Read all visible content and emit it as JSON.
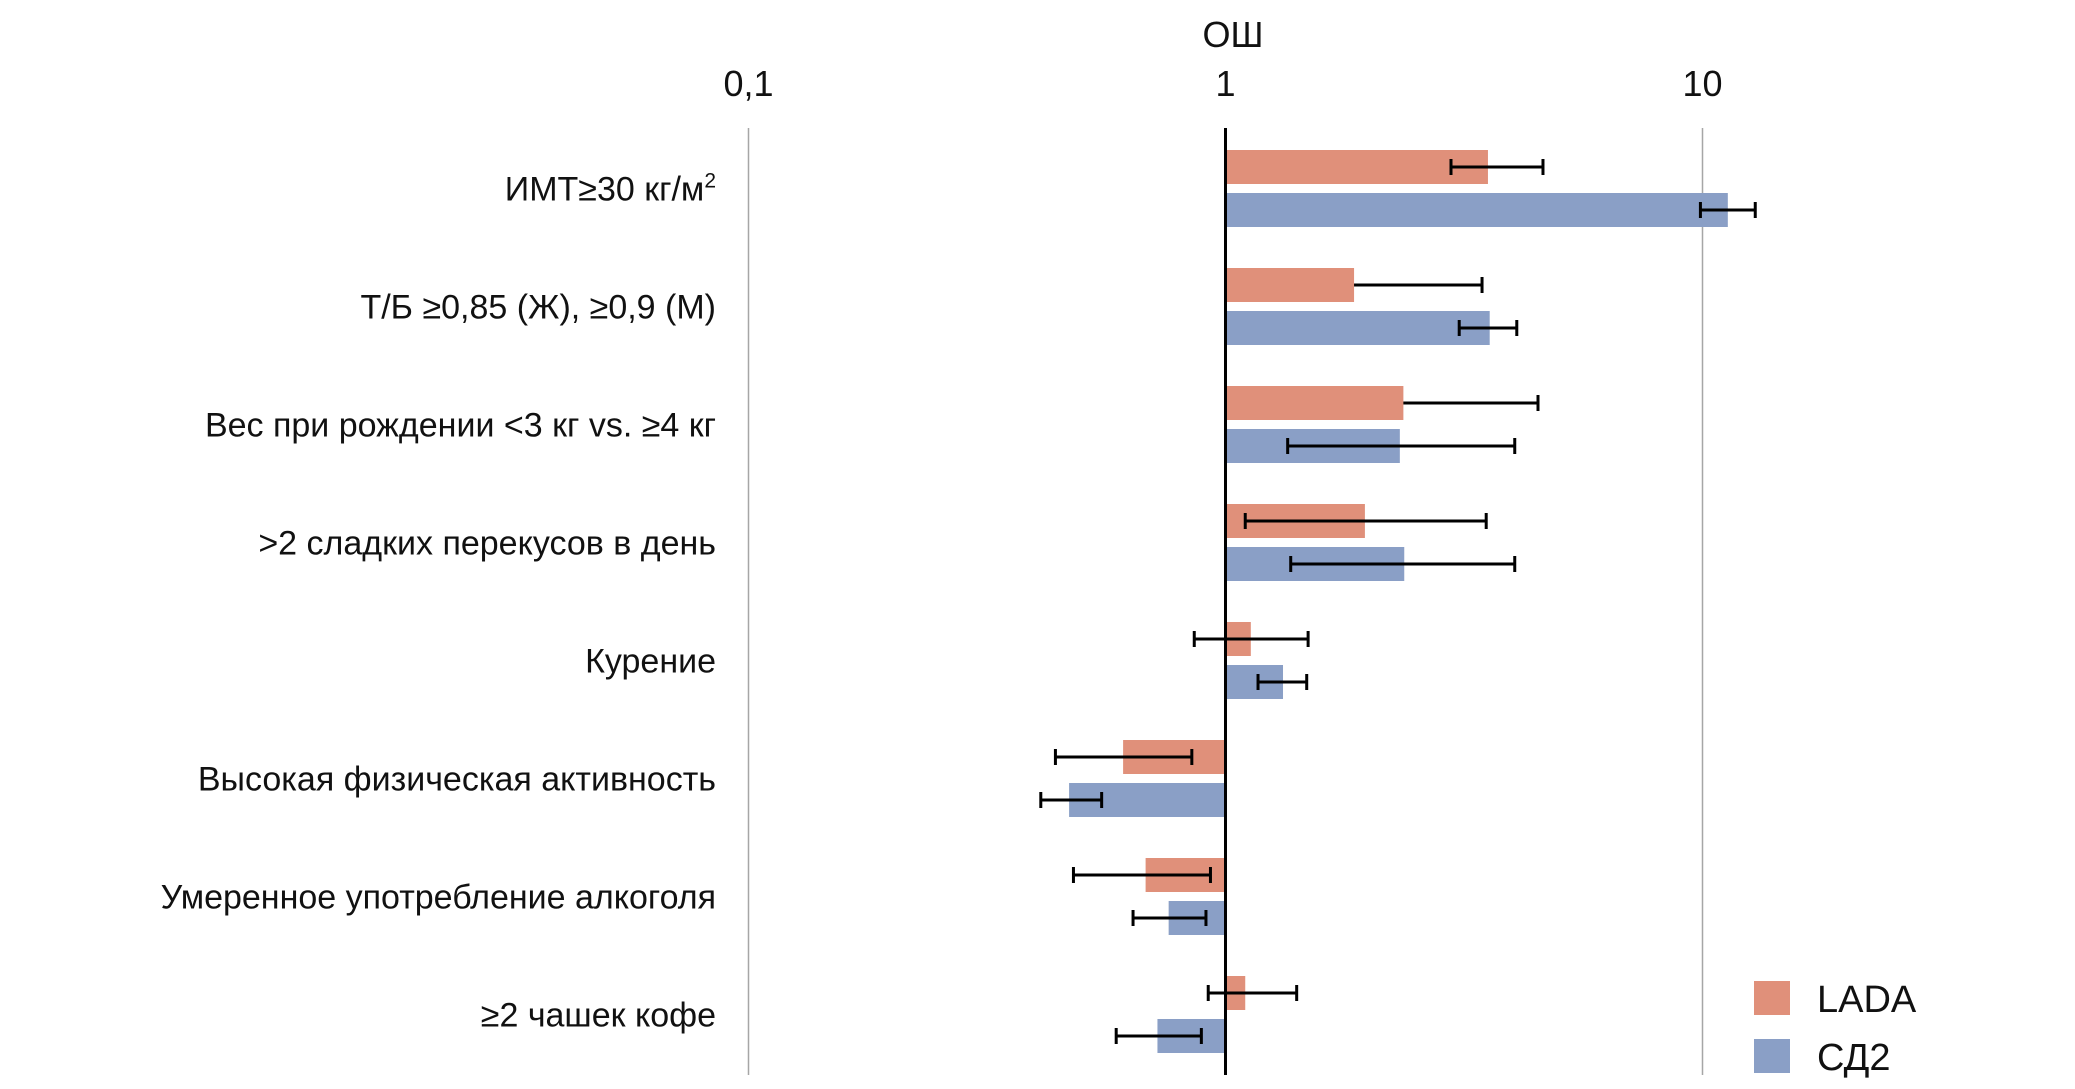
{
  "chart_data": {
    "type": "bar",
    "orientation": "horizontal",
    "x_scale": "log",
    "title": "",
    "xlabel": "ОШ",
    "ylabel": "",
    "xlim": [
      0.1,
      20
    ],
    "x_ticks": [
      {
        "value": 0.1,
        "label": "0,1"
      },
      {
        "value": 1,
        "label": "1"
      },
      {
        "value": 10,
        "label": "10"
      }
    ],
    "grid": true,
    "reference_line": 1,
    "legend_position": "bottom-right",
    "categories": [
      "ИМТ≥30 кг/м",
      "Т/Б ≥0,85 (Ж), ≥0,9 (М)",
      "Вес при рождении <3 кг vs. ≥4 кг",
      ">2 сладких перекусов в день",
      "Курение",
      "Высокая физическая активность",
      "Умеренное употребление алкоголя",
      "≥2 чашек кофе"
    ],
    "category_superscripts": [
      "2",
      "",
      "",
      "",
      "",
      "",
      "",
      ""
    ],
    "series": [
      {
        "name": "LADA",
        "color": "#e0907a",
        "values": [
          3.55,
          1.86,
          2.36,
          1.96,
          1.13,
          0.61,
          0.68,
          1.1
        ],
        "ci_lower": [
          2.97,
          1.5,
          1.6,
          1.1,
          0.86,
          0.44,
          0.48,
          0.92
        ],
        "ci_upper": [
          4.63,
          3.45,
          4.52,
          3.52,
          1.49,
          0.85,
          0.93,
          1.41
        ],
        "ci_lower_visible": [
          true,
          false,
          false,
          true,
          true,
          true,
          true,
          true
        ]
      },
      {
        "name": "СД2",
        "color": "#8a9fc6",
        "values": [
          11.3,
          3.58,
          2.32,
          2.37,
          1.32,
          0.47,
          0.76,
          0.72
        ],
        "ci_lower": [
          9.9,
          3.09,
          1.35,
          1.37,
          1.17,
          0.41,
          0.64,
          0.59
        ],
        "ci_upper": [
          12.9,
          4.08,
          4.04,
          4.04,
          1.48,
          0.55,
          0.91,
          0.89
        ],
        "ci_lower_visible": [
          true,
          true,
          true,
          true,
          true,
          true,
          true,
          true
        ]
      }
    ]
  }
}
